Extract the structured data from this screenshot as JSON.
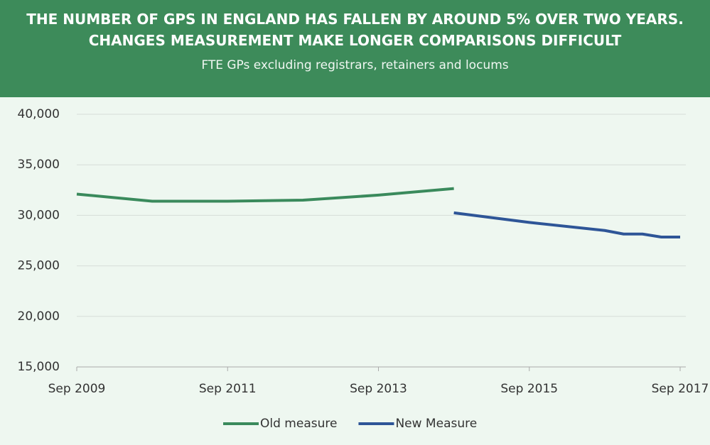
{
  "chart_data": {
    "type": "line",
    "title": "THE NUMBER OF GPS IN ENGLAND HAS FALLEN BY AROUND 5% OVER TWO YEARS. CHANGES MEASUREMENT MAKE LONGER COMPARISONS DIFFICULT",
    "subtitle": "FTE GPs excluding registrars, retainers and locums",
    "x": [
      "Sep 2009",
      "Sep 2010",
      "Sep 2011",
      "Sep 2012",
      "Sep 2013",
      "Sep 2014",
      "Sep 2015",
      "Sep 2016",
      "Dec 2016",
      "Mar 2017",
      "Jun 2017",
      "Sep 2017"
    ],
    "xlim": [
      "Sep 2009",
      "Sep 2017"
    ],
    "xticks": [
      "Sep 2009",
      "Sep 2011",
      "Sep 2013",
      "Sep 2015",
      "Sep 2017"
    ],
    "ylim": [
      15000,
      40000
    ],
    "yticks": [
      {
        "value": 15000,
        "label": "15,000"
      },
      {
        "value": 20000,
        "label": "20,000"
      },
      {
        "value": 25000,
        "label": "25,000"
      },
      {
        "value": 30000,
        "label": "30,000"
      },
      {
        "value": 35000,
        "label": "35,000"
      },
      {
        "value": 40000,
        "label": "40,000"
      }
    ],
    "grid": true,
    "legend": "bottom",
    "series": [
      {
        "name": "Old measure",
        "color": "#3a8a5c",
        "values": [
          32100,
          31400,
          31400,
          31500,
          32000,
          32650,
          null,
          null,
          null,
          null,
          null,
          null
        ]
      },
      {
        "name": "New Measure",
        "color": "#2e5597",
        "values": [
          null,
          null,
          null,
          null,
          null,
          30250,
          29300,
          28500,
          28150,
          28150,
          27850,
          27850
        ]
      }
    ]
  }
}
